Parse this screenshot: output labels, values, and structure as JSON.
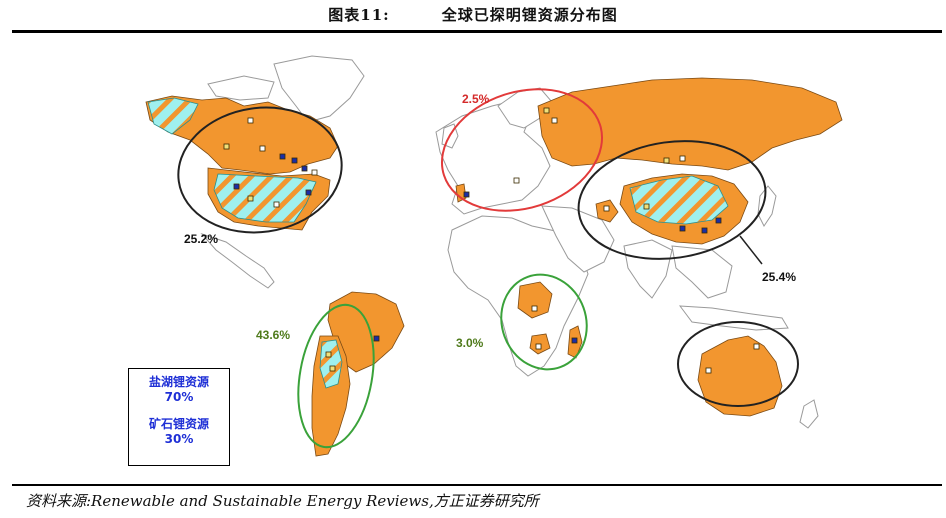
{
  "figure": {
    "number": "图表11:",
    "title": "全球已探明锂资源分布图"
  },
  "colors": {
    "resource_land": "#f2962f",
    "brine_hatch": "#9ff0ee",
    "land_gray": "#ffffff",
    "circle_north_america": "#222222",
    "circle_europe": "#e23a3a",
    "circle_asia": "#222222",
    "circle_south_america": "#3aa23a",
    "circle_africa": "#3aa23a",
    "circle_australia": "#222222"
  },
  "regions": [
    {
      "label": "25.2%",
      "color": "#111111"
    },
    {
      "label": "2.5%",
      "color": "#d42a2a"
    },
    {
      "label": "25.4%",
      "color": "#111111"
    },
    {
      "label": "43.6%",
      "color": "#4e7a1a"
    },
    {
      "label": "3.0%",
      "color": "#4e7a1a"
    }
  ],
  "legend": {
    "brine_name": "盐湖锂资源",
    "brine_pct": "70%",
    "ore_name": "矿石锂资源",
    "ore_pct": "30%"
  },
  "source": "资料来源:Renewable and Sustainable Energy Reviews,方正证券研究所"
}
